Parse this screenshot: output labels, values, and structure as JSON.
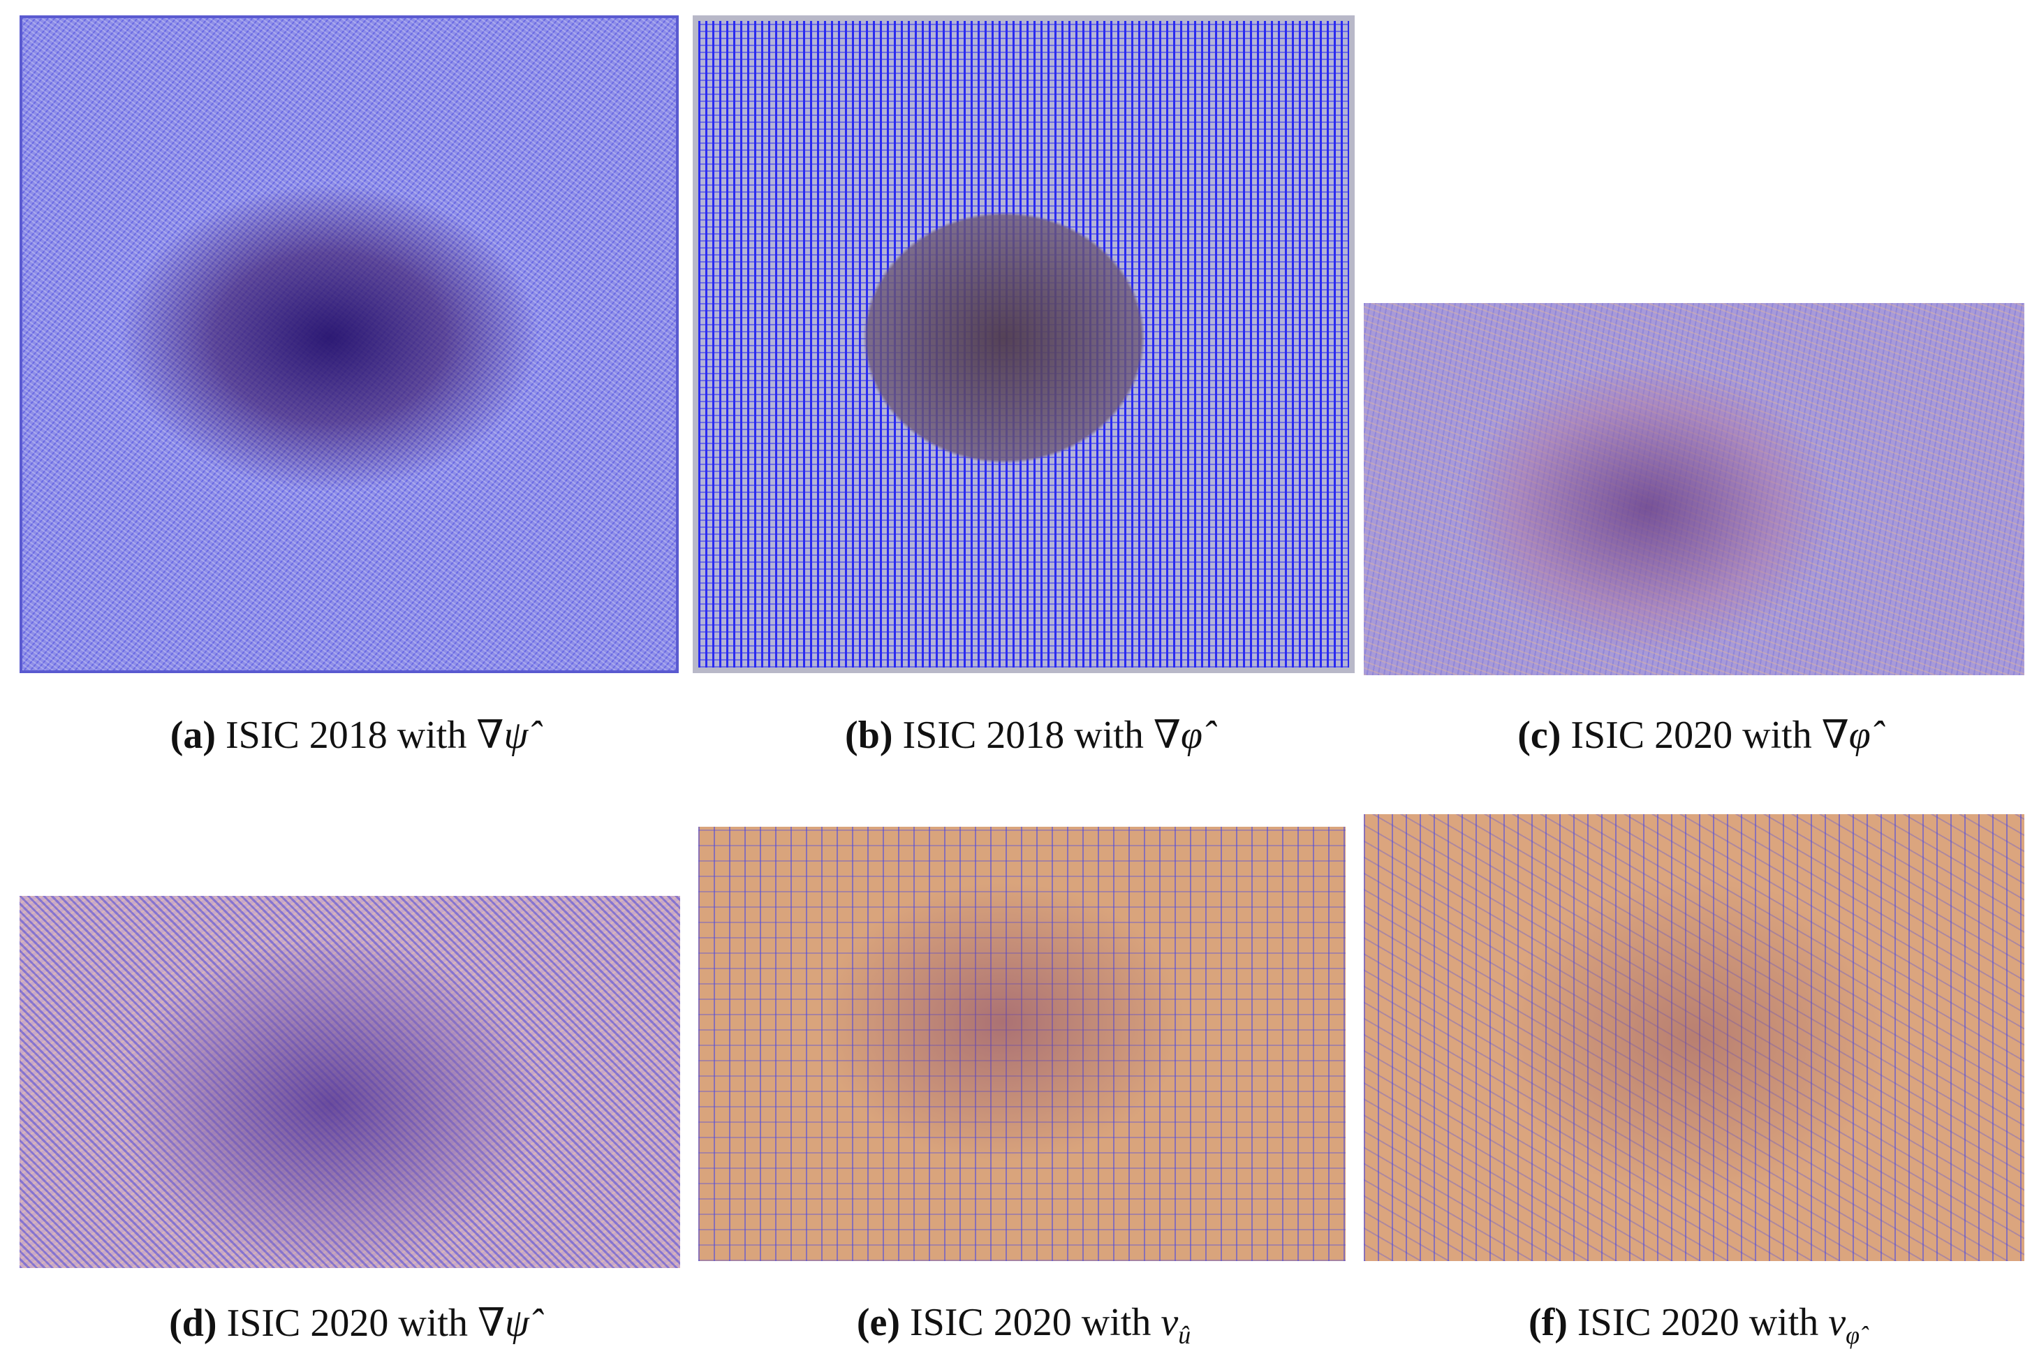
{
  "figure": {
    "panels": [
      {
        "label": "(a)",
        "text": "ISIC 2018 with",
        "math": "∇ψ̂"
      },
      {
        "label": "(b)",
        "text": "ISIC 2018 with",
        "math": "∇φ̂"
      },
      {
        "label": "(c)",
        "text": "ISIC 2020 with",
        "math": "∇φ̂"
      },
      {
        "label": "(d)",
        "text": "ISIC 2020 with",
        "math": "∇ψ̂"
      },
      {
        "label": "(e)",
        "text": "ISIC 2020 with",
        "math": "v",
        "sub": "û"
      },
      {
        "label": "(f)",
        "text": "ISIC 2020 with",
        "math": "v",
        "sub": "φ̂"
      }
    ]
  }
}
